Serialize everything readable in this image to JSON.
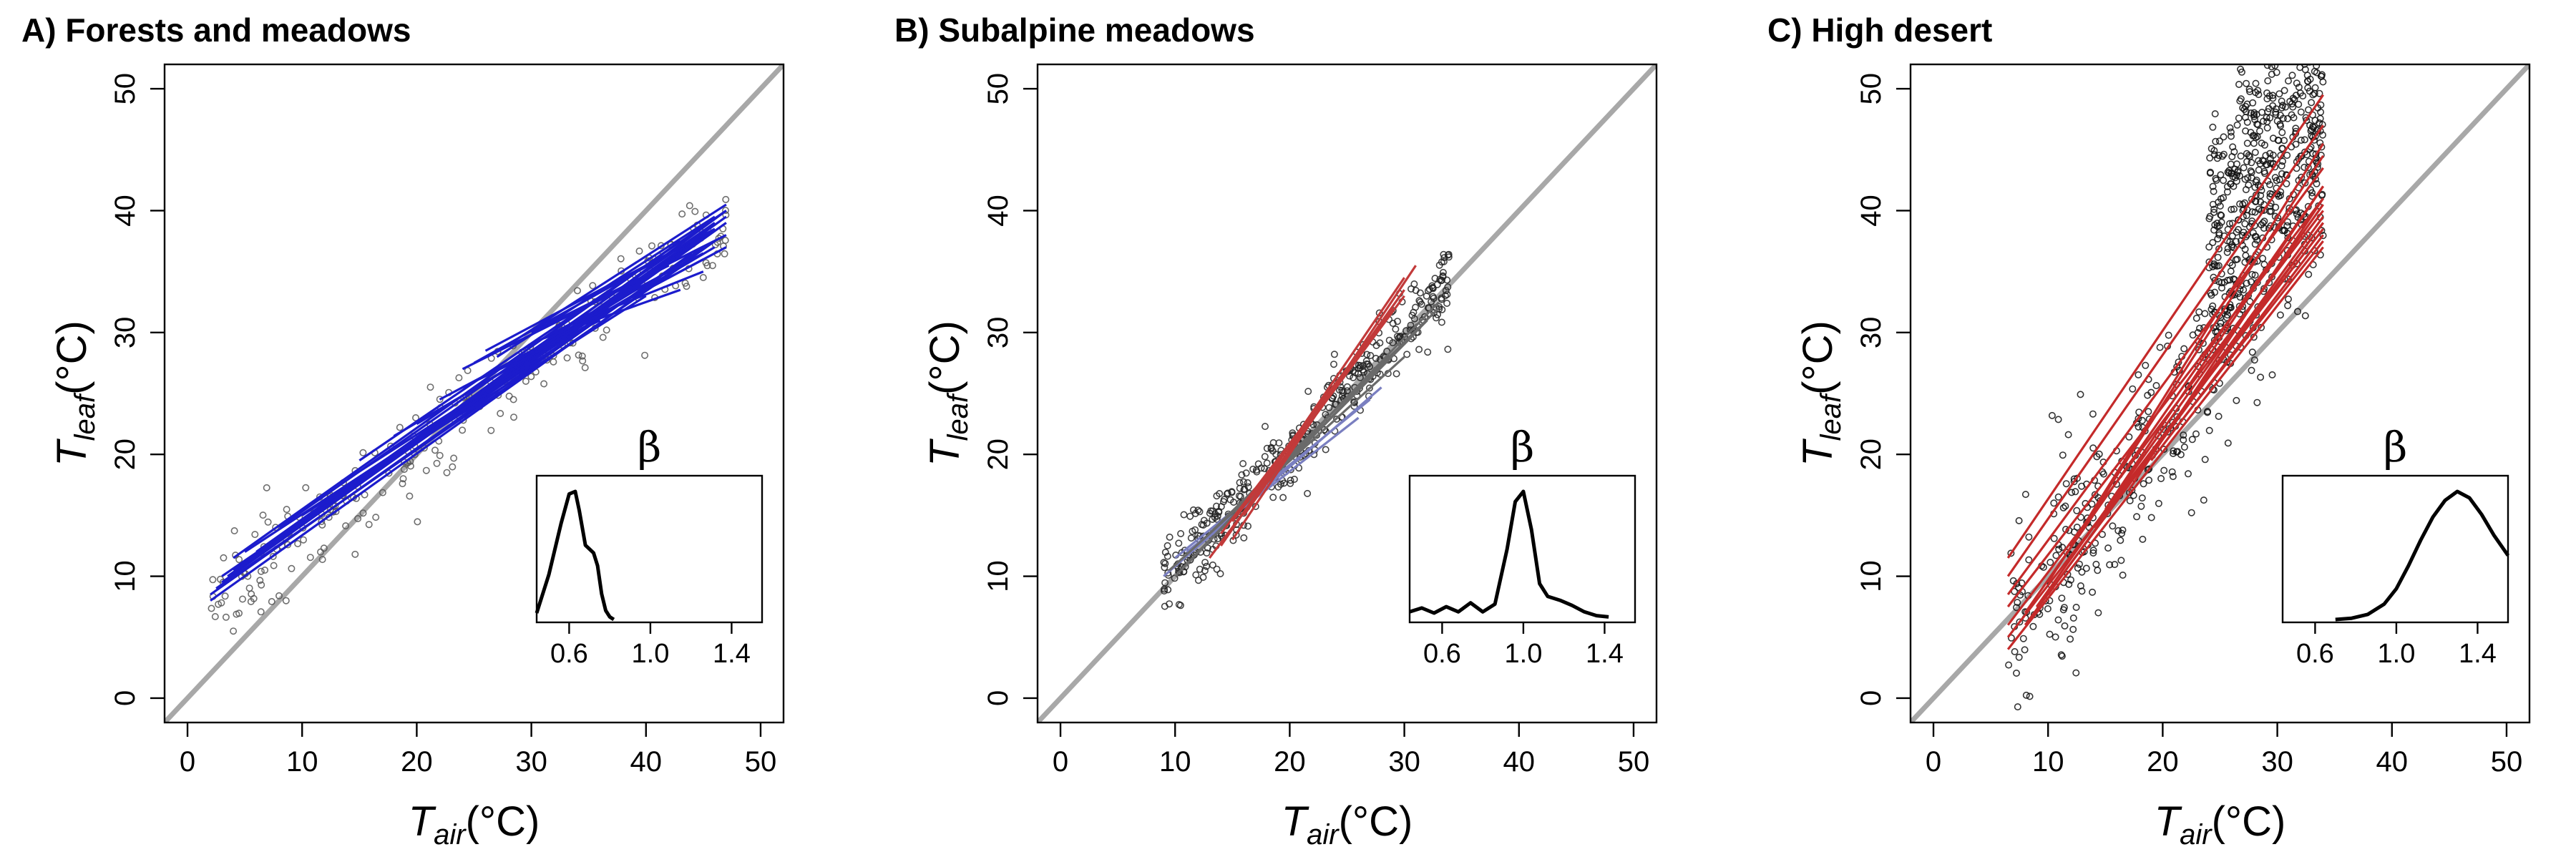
{
  "chart_data": [
    {
      "type": "scatter",
      "panel": "A",
      "title": "A) Forests and meadows",
      "xlabel_main": "T",
      "xlabel_sub": "air",
      "xlabel_unit": "(°C)",
      "ylabel_main": "T",
      "ylabel_sub": "leaf",
      "ylabel_unit": "(°C)",
      "xlim": [
        -2,
        52
      ],
      "ylim": [
        -2,
        52
      ],
      "xticks": [
        0,
        10,
        20,
        30,
        40,
        50
      ],
      "yticks": [
        0,
        10,
        20,
        30,
        40,
        50
      ],
      "one_to_one_line": {
        "color": "#a8a8a8"
      },
      "points": {
        "x_range": [
          2,
          47
        ],
        "slope": 0.7,
        "intercept": 6.5,
        "spread": 1.8,
        "count": 260,
        "color": "#555555"
      },
      "fit_lines": {
        "color": "#1c1ccc",
        "count": 30,
        "segments": [
          {
            "x": [
              2,
              46
            ],
            "y": [
              8.0,
              37.5
            ]
          },
          {
            "x": [
              3,
              47
            ],
            "y": [
              9.5,
              39.0
            ]
          },
          {
            "x": [
              4,
              45
            ],
            "y": [
              10.5,
              38.0
            ]
          },
          {
            "x": [
              2.5,
              44
            ],
            "y": [
              9.0,
              36.0
            ]
          },
          {
            "x": [
              5,
              47
            ],
            "y": [
              11.0,
              40.0
            ]
          },
          {
            "x": [
              3.5,
              46
            ],
            "y": [
              10.0,
              38.5
            ]
          },
          {
            "x": [
              4,
              43
            ],
            "y": [
              11.5,
              37.5
            ]
          },
          {
            "x": [
              6,
              47
            ],
            "y": [
              12.0,
              39.5
            ]
          },
          {
            "x": [
              2,
              44
            ],
            "y": [
              8.5,
              36.5
            ]
          },
          {
            "x": [
              3,
              45
            ],
            "y": [
              10.0,
              37.0
            ]
          },
          {
            "x": [
              24,
              42
            ],
            "y": [
              27.0,
              35.5
            ]
          },
          {
            "x": [
              26,
              46
            ],
            "y": [
              28.5,
              38.5
            ]
          },
          {
            "x": [
              25,
              44
            ],
            "y": [
              27.5,
              37.5
            ]
          },
          {
            "x": [
              30,
              47
            ],
            "y": [
              30.0,
              38.0
            ]
          },
          {
            "x": [
              28,
              47
            ],
            "y": [
              29.0,
              40.5
            ]
          },
          {
            "x": [
              24,
              36
            ],
            "y": [
              25.5,
              31.0
            ]
          },
          {
            "x": [
              33,
              45
            ],
            "y": [
              30.5,
              35.0
            ]
          },
          {
            "x": [
              31,
              43
            ],
            "y": [
              29.5,
              33.5
            ]
          },
          {
            "x": [
              20,
              40
            ],
            "y": [
              22.5,
              34.0
            ]
          },
          {
            "x": [
              14,
              38
            ],
            "y": [
              18.0,
              32.5
            ]
          },
          {
            "x": [
              10,
              40
            ],
            "y": [
              15.0,
              33.0
            ]
          },
          {
            "x": [
              8,
              46
            ],
            "y": [
              14.0,
              39.0
            ]
          },
          {
            "x": [
              15,
              47
            ],
            "y": [
              19.5,
              40.0
            ]
          },
          {
            "x": [
              22,
              45
            ],
            "y": [
              24.5,
              36.0
            ]
          },
          {
            "x": [
              5,
              35
            ],
            "y": [
              12.0,
              30.5
            ]
          },
          {
            "x": [
              12,
              30
            ],
            "y": [
              16.0,
              27.5
            ]
          },
          {
            "x": [
              18,
              46
            ],
            "y": [
              21.5,
              37.0
            ]
          },
          {
            "x": [
              27,
              46
            ],
            "y": [
              28.0,
              39.5
            ]
          },
          {
            "x": [
              35,
              47
            ],
            "y": [
              31.0,
              37.0
            ]
          },
          {
            "x": [
              29,
              45
            ],
            "y": [
              28.5,
              36.5
            ]
          }
        ]
      },
      "inset": {
        "label": "β",
        "xlim": [
          0.44,
          1.55
        ],
        "ticks": [
          0.6,
          1.0,
          1.4
        ],
        "tick_labels": [
          "0.6",
          "1.0",
          "1.4"
        ],
        "density": {
          "x": [
            0.44,
            0.5,
            0.56,
            0.6,
            0.63,
            0.65,
            0.68,
            0.7,
            0.72,
            0.74,
            0.76,
            0.78,
            0.8,
            0.82
          ],
          "y": [
            0.05,
            0.35,
            0.75,
            0.98,
            1.0,
            0.85,
            0.58,
            0.55,
            0.52,
            0.42,
            0.2,
            0.07,
            0.02,
            0.0
          ]
        }
      }
    },
    {
      "type": "scatter",
      "panel": "B",
      "title": "B) Subalpine meadows",
      "xlabel_main": "T",
      "xlabel_sub": "air",
      "xlabel_unit": "(°C)",
      "ylabel_main": "T",
      "ylabel_sub": "leaf",
      "ylabel_unit": "(°C)",
      "xlim": [
        -2,
        52
      ],
      "ylim": [
        -2,
        52
      ],
      "xticks": [
        0,
        10,
        20,
        30,
        40,
        50
      ],
      "yticks": [
        0,
        10,
        20,
        30,
        40,
        50
      ],
      "one_to_one_line": {
        "color": "#a8a8a8"
      },
      "points": {
        "x_range": [
          9,
          34
        ],
        "slope": 1.0,
        "intercept": 0.5,
        "spread": 1.6,
        "count": 420,
        "color": "#222222"
      },
      "fit_lines": {
        "colors": [
          "#7a7fc0",
          "#6a6a6a",
          "#c23a3a"
        ],
        "segments": [
          {
            "x": [
              9,
              28
            ],
            "y": [
              10.0,
              25.5
            ],
            "c": 0
          },
          {
            "x": [
              10,
              27
            ],
            "y": [
              11.5,
              24.5
            ],
            "c": 0
          },
          {
            "x": [
              11,
              26
            ],
            "y": [
              12.0,
              23.0
            ],
            "c": 0
          },
          {
            "x": [
              9.5,
              30
            ],
            "y": [
              10.5,
              28.0
            ],
            "c": 1
          },
          {
            "x": [
              10,
              33
            ],
            "y": [
              10.0,
              32.5
            ],
            "c": 1
          },
          {
            "x": [
              12,
              32
            ],
            "y": [
              12.0,
              31.0
            ],
            "c": 1
          },
          {
            "x": [
              11,
              31
            ],
            "y": [
              11.0,
              30.0
            ],
            "c": 1
          },
          {
            "x": [
              13,
              33
            ],
            "y": [
              13.5,
              32.0
            ],
            "c": 1
          },
          {
            "x": [
              13,
              30
            ],
            "y": [
              11.5,
              33.0
            ],
            "c": 2
          },
          {
            "x": [
              14,
              30
            ],
            "y": [
              12.5,
              34.5
            ],
            "c": 2
          },
          {
            "x": [
              15,
              31
            ],
            "y": [
              13.0,
              35.5
            ],
            "c": 2
          },
          {
            "x": [
              14,
              29
            ],
            "y": [
              13.5,
              32.0
            ],
            "c": 2
          },
          {
            "x": [
              16,
              30
            ],
            "y": [
              15.0,
              33.5
            ],
            "c": 2
          },
          {
            "x": [
              15,
              28
            ],
            "y": [
              14.5,
              30.5
            ],
            "c": 2
          }
        ]
      },
      "inset": {
        "label": "β",
        "xlim": [
          0.44,
          1.55
        ],
        "ticks": [
          0.6,
          1.0,
          1.4
        ],
        "tick_labels": [
          "0.6",
          "1.0",
          "1.4"
        ],
        "density": {
          "x": [
            0.44,
            0.5,
            0.56,
            0.62,
            0.68,
            0.74,
            0.8,
            0.86,
            0.92,
            0.96,
            1.0,
            1.04,
            1.08,
            1.12,
            1.18,
            1.24,
            1.3,
            1.36,
            1.42
          ],
          "y": [
            0.06,
            0.09,
            0.05,
            0.1,
            0.06,
            0.13,
            0.06,
            0.12,
            0.55,
            0.92,
            1.0,
            0.7,
            0.28,
            0.18,
            0.15,
            0.11,
            0.06,
            0.03,
            0.02
          ]
        }
      }
    },
    {
      "type": "scatter",
      "panel": "C",
      "title": "C) High desert",
      "xlabel_main": "T",
      "xlabel_sub": "air",
      "xlabel_unit": "(°C)",
      "ylabel_main": "T",
      "ylabel_sub": "leaf",
      "ylabel_unit": "(°C)",
      "xlim": [
        -2,
        52
      ],
      "ylim": [
        -2,
        52
      ],
      "xticks": [
        0,
        10,
        20,
        30,
        40,
        50
      ],
      "yticks": [
        0,
        10,
        20,
        30,
        40,
        50
      ],
      "one_to_one_line": {
        "color": "#a8a8a8"
      },
      "points": {
        "x_range": [
          6.5,
          34
        ],
        "slope": 1.25,
        "intercept": -3.0,
        "spread": 4.0,
        "count": 900,
        "color": "#111111"
      },
      "fit_lines": {
        "color": "#c42a2a",
        "count": 18,
        "segments": [
          {
            "x": [
              6.5,
              34
            ],
            "y": [
              4.0,
              37.0
            ]
          },
          {
            "x": [
              6.5,
              34
            ],
            "y": [
              5.0,
              38.5
            ]
          },
          {
            "x": [
              6.5,
              34
            ],
            "y": [
              6.0,
              40.0
            ]
          },
          {
            "x": [
              6.5,
              34
            ],
            "y": [
              7.5,
              41.0
            ]
          },
          {
            "x": [
              6.5,
              34
            ],
            "y": [
              8.5,
              43.5
            ]
          },
          {
            "x": [
              6.5,
              34
            ],
            "y": [
              10.0,
              47.0
            ]
          },
          {
            "x": [
              6.5,
              34
            ],
            "y": [
              11.5,
              49.5
            ]
          },
          {
            "x": [
              8,
              34
            ],
            "y": [
              6.0,
              39.0
            ]
          },
          {
            "x": [
              8,
              34
            ],
            "y": [
              7.0,
              42.0
            ]
          },
          {
            "x": [
              9,
              34
            ],
            "y": [
              7.5,
              40.5
            ]
          },
          {
            "x": [
              10,
              34
            ],
            "y": [
              9.5,
              44.5
            ]
          },
          {
            "x": [
              10,
              34
            ],
            "y": [
              8.5,
              39.5
            ]
          },
          {
            "x": [
              12,
              34
            ],
            "y": [
              12.5,
              45.5
            ]
          },
          {
            "x": [
              14,
              34
            ],
            "y": [
              14.0,
              39.0
            ]
          },
          {
            "x": [
              15,
              34
            ],
            "y": [
              15.5,
              42.0
            ]
          },
          {
            "x": [
              17,
              34
            ],
            "y": [
              17.0,
              41.0
            ]
          },
          {
            "x": [
              19,
              34
            ],
            "y": [
              19.5,
              38.0
            ]
          },
          {
            "x": [
              21,
              34
            ],
            "y": [
              22.0,
              37.5
            ]
          }
        ]
      },
      "inset": {
        "label": "β",
        "xlim": [
          0.44,
          1.55
        ],
        "ticks": [
          0.6,
          1.0,
          1.4
        ],
        "tick_labels": [
          "0.6",
          "1.0",
          "1.4"
        ],
        "density": {
          "x": [
            0.7,
            0.78,
            0.86,
            0.94,
            1.0,
            1.06,
            1.12,
            1.18,
            1.24,
            1.3,
            1.36,
            1.42,
            1.48,
            1.55
          ],
          "y": [
            0.0,
            0.01,
            0.04,
            0.12,
            0.24,
            0.42,
            0.62,
            0.8,
            0.93,
            1.0,
            0.95,
            0.82,
            0.66,
            0.5
          ]
        }
      }
    }
  ]
}
